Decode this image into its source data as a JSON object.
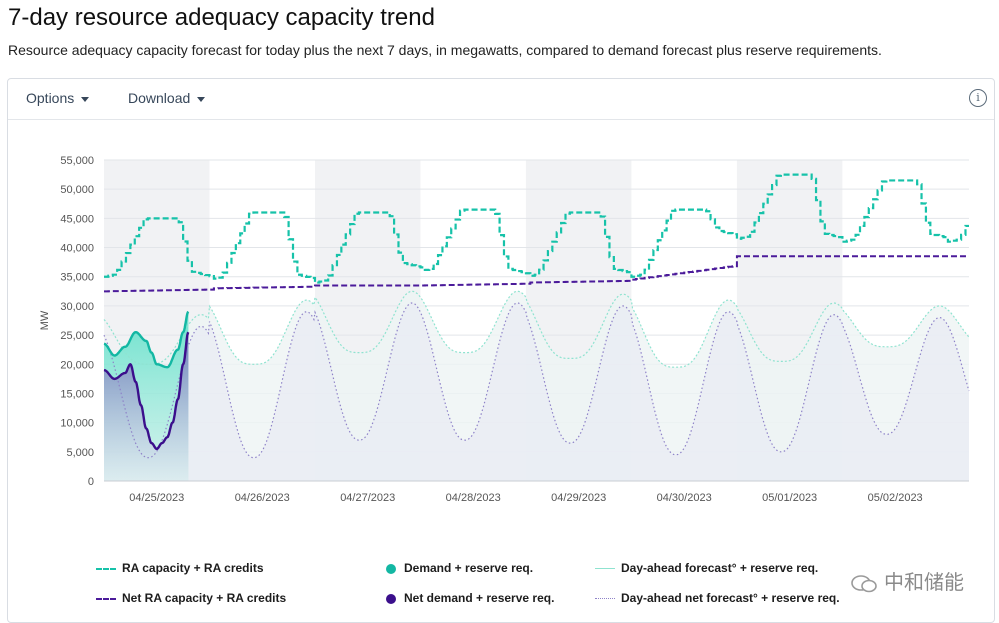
{
  "page": {
    "title": "7-day resource adequacy capacity trend",
    "subtitle": "Resource adequacy capacity forecast for today plus the next 7 days, in megawatts, compared to demand forecast plus reserve requirements."
  },
  "toolbar": {
    "options_label": "Options",
    "download_label": "Download",
    "info_symbol": "i"
  },
  "legend": [
    {
      "key": "ra",
      "label": "RA capacity + RA credits",
      "style": "dash",
      "color": "#16c2a9"
    },
    {
      "key": "demand",
      "label": "Demand + reserve req.",
      "style": "dot",
      "color": "#13b7a3"
    },
    {
      "key": "da",
      "label": "Day-ahead forecast° + reserve req.",
      "style": "thin",
      "color": "#8fe3d0"
    },
    {
      "key": "netra",
      "label": "Net RA capacity + RA credits",
      "style": "dash",
      "color": "#4b1b9a"
    },
    {
      "key": "netdemand",
      "label": "Net demand + reserve req.",
      "style": "dot",
      "color": "#3b0f8c"
    },
    {
      "key": "dan",
      "label": "Day-ahead net forecast° + reserve req.",
      "style": "dotted",
      "color": "#8e82c8"
    }
  ],
  "watermark": {
    "text": "中和储能"
  },
  "chart_data": {
    "type": "line",
    "ylabel": "MW",
    "ylim": [
      0,
      55000
    ],
    "yticks": [
      0,
      5000,
      10000,
      15000,
      20000,
      25000,
      30000,
      35000,
      40000,
      45000,
      50000,
      55000
    ],
    "ytick_labels": [
      "0",
      "5,000",
      "10,000",
      "15,000",
      "20,000",
      "25,000",
      "30,000",
      "35,000",
      "40,000",
      "45,000",
      "50,000",
      "55,000"
    ],
    "xlim": [
      0,
      8.2
    ],
    "x_unit": "days from 04/25/2023 00:00",
    "x_tick_positions": [
      0.5,
      1.5,
      2.5,
      3.5,
      4.5,
      5.5,
      6.5,
      7.5
    ],
    "x_tick_labels": [
      "04/25/2023",
      "04/26/2023",
      "04/27/2023",
      "04/28/2023",
      "04/29/2023",
      "04/30/2023",
      "05/01/2023",
      "05/02/2023"
    ],
    "ra_peak_by_day": [
      45000,
      46000,
      46000,
      46500,
      46000,
      46500,
      52500,
      51500
    ],
    "ra_offpeak_by_day": [
      36000,
      35500,
      35000,
      37000,
      36000,
      36000,
      42500,
      42000
    ],
    "net_ra_by_day": [
      32500,
      33000,
      33500,
      33500,
      34000,
      34500,
      38500,
      38500
    ],
    "da_peak_by_day": [
      28500,
      31000,
      32500,
      32500,
      32000,
      31000,
      30500,
      30000
    ],
    "da_trough_by_day": [
      20000,
      20000,
      22000,
      22000,
      21000,
      19500,
      20500,
      23000
    ],
    "dan_trough_by_day": [
      4000,
      4000,
      7000,
      7000,
      6500,
      4500,
      5000,
      8000
    ],
    "series": [
      {
        "name": "Demand + reserve req.",
        "x": [
          0,
          0.1,
          0.2,
          0.3,
          0.4,
          0.45,
          0.5,
          0.6,
          0.7,
          0.75,
          0.8
        ],
        "y": [
          23500,
          21500,
          23000,
          25500,
          24000,
          22000,
          20000,
          19500,
          22500,
          25500,
          29000
        ]
      },
      {
        "name": "Net demand + reserve req.",
        "x": [
          0,
          0.1,
          0.2,
          0.25,
          0.3,
          0.35,
          0.4,
          0.45,
          0.5,
          0.55,
          0.6,
          0.65,
          0.7,
          0.75,
          0.8
        ],
        "y": [
          19000,
          17500,
          18500,
          20000,
          17000,
          13000,
          9000,
          6500,
          5500,
          6500,
          7500,
          10000,
          14000,
          20000,
          25500
        ]
      }
    ]
  }
}
